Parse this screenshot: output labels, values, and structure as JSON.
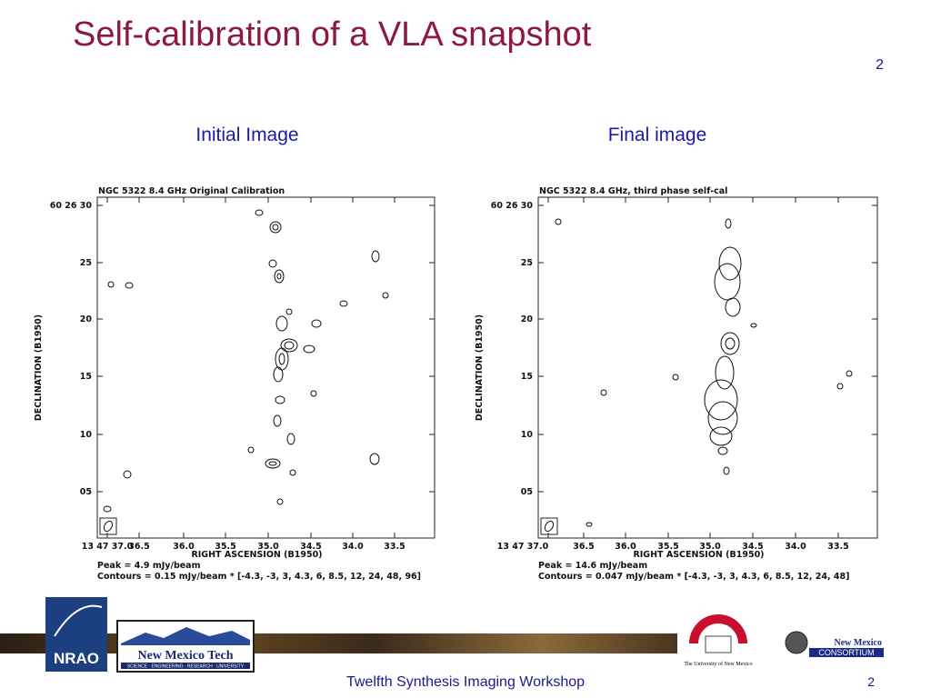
{
  "title": "Self-calibration of a VLA snapshot",
  "page_number": "2",
  "panels": [
    {
      "heading": "Initial Image",
      "plot_title": "NGC 5322   8.4 GHz  Original Calibration",
      "y_label": "DECLINATION (B1950)",
      "x_label": "RIGHT ASCENSION (B1950)",
      "y_ticks": [
        "60 26 30",
        "25",
        "20",
        "15",
        "10",
        "05"
      ],
      "x_ticks": [
        "13 47 37.0",
        "36.5",
        "36.0",
        "35.5",
        "35.0",
        "34.5",
        "34.0",
        "33.5"
      ],
      "peak": "Peak =  4.9 mJy/beam",
      "contours": "Contours = 0.15 mJy/beam * [-4.3, -3, 3, 4.3, 6, 8.5, 12, 24, 48, 96]"
    },
    {
      "heading": "Final image",
      "plot_title": "NGC 5322  8.4 GHz, third phase self-cal",
      "y_label": "DECLINATION (B1950)",
      "x_label": "RIGHT ASCENSION (B1950)",
      "y_ticks": [
        "60 26 30",
        "25",
        "20",
        "15",
        "10",
        "05"
      ],
      "x_ticks": [
        "13 47 37.0",
        "36.5",
        "36.0",
        "35.5",
        "35.0",
        "34.5",
        "34.0",
        "33.5"
      ],
      "peak": "Peak = 14.6 mJy/beam",
      "contours": "Contours = 0.047 mJy/beam * [-4.3, -3, 3, 4.3, 6, 8.5, 12, 24, 48]"
    }
  ],
  "logos": {
    "nrao": "NRAO",
    "nmt": "New Mexico Tech",
    "nmt_tagline": "SCIENCE · ENGINEERING · RESEARCH · UNIVERSITY",
    "unm": "The University of New Mexico",
    "nmc_1": "New Mexico",
    "nmc_2": "CONSORTIUM"
  },
  "footer": {
    "text": "Twelfth Synthesis Imaging Workshop",
    "page_number": "2"
  }
}
